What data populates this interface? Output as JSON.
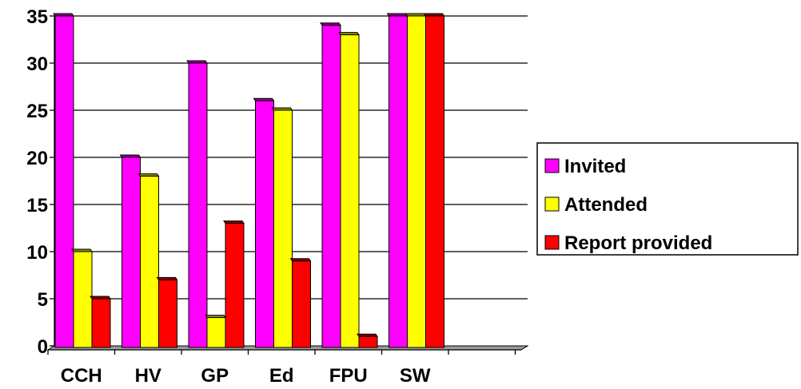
{
  "chart_data": {
    "type": "bar",
    "categories": [
      "CCH",
      "HV",
      "GP",
      "Ed",
      "FPU",
      "SW",
      ""
    ],
    "series": [
      {
        "name": "Invited",
        "color": "#ff00ff",
        "values": [
          35,
          20,
          30,
          26,
          34,
          35,
          null
        ]
      },
      {
        "name": "Attended",
        "color": "#ffff00",
        "values": [
          10,
          18,
          3,
          25,
          33,
          35,
          null
        ]
      },
      {
        "name": "Report provided",
        "color": "#ff0000",
        "values": [
          5,
          7,
          13,
          9,
          1,
          35,
          null
        ]
      }
    ],
    "ylim": [
      0,
      35
    ],
    "yticks": [
      0,
      5,
      10,
      15,
      20,
      25,
      30,
      35
    ],
    "grid": "horizontal",
    "legend_position": "right",
    "style": "3d-bars"
  }
}
